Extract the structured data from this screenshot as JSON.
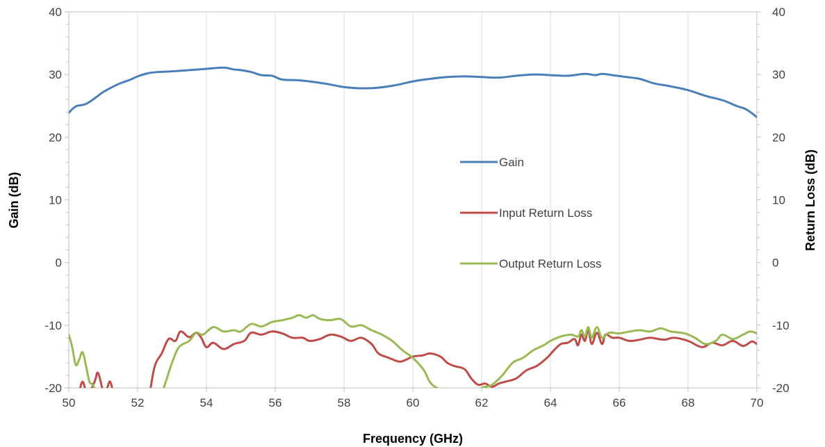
{
  "chart_data": {
    "type": "line",
    "title": "",
    "xlabel": "Frequency (GHz)",
    "ylabel": "Gain (dB)",
    "y2label": "Return Loss (dB)",
    "xlim": [
      50,
      70
    ],
    "ylim": [
      -20,
      40
    ],
    "y2lim": [
      -20,
      40
    ],
    "x_ticks": [
      "50",
      "52",
      "54",
      "56",
      "58",
      "60",
      "62",
      "64",
      "66",
      "68",
      "70"
    ],
    "y_ticks": [
      "-20",
      "-10",
      "0",
      "10",
      "20",
      "30",
      "40"
    ],
    "y2_ticks": [
      "-20",
      "-10",
      "0",
      "10",
      "20",
      "30",
      "40"
    ],
    "grid": "vertical",
    "legend_position": "center-right",
    "series": [
      {
        "name": "Gain",
        "color": "#4a7ebb",
        "axis": "left",
        "points": [
          [
            50,
            23.9
          ],
          [
            50.2,
            24.9
          ],
          [
            50.5,
            25.3
          ],
          [
            50.8,
            26.4
          ],
          [
            51.0,
            27.2
          ],
          [
            51.3,
            28.1
          ],
          [
            51.5,
            28.6
          ],
          [
            51.8,
            29.2
          ],
          [
            52.0,
            29.7
          ],
          [
            52.3,
            30.2
          ],
          [
            52.6,
            30.4
          ],
          [
            53.0,
            30.5
          ],
          [
            53.5,
            30.7
          ],
          [
            54.0,
            30.9
          ],
          [
            54.5,
            31.1
          ],
          [
            54.8,
            30.8
          ],
          [
            55.0,
            30.7
          ],
          [
            55.3,
            30.4
          ],
          [
            55.6,
            29.9
          ],
          [
            55.9,
            29.8
          ],
          [
            56.2,
            29.2
          ],
          [
            56.6,
            29.1
          ],
          [
            57.0,
            28.9
          ],
          [
            57.5,
            28.5
          ],
          [
            58.0,
            28.0
          ],
          [
            58.5,
            27.8
          ],
          [
            59.0,
            27.9
          ],
          [
            59.5,
            28.3
          ],
          [
            60.0,
            28.9
          ],
          [
            60.5,
            29.3
          ],
          [
            61.0,
            29.6
          ],
          [
            61.5,
            29.7
          ],
          [
            62.0,
            29.6
          ],
          [
            62.5,
            29.5
          ],
          [
            63.0,
            29.8
          ],
          [
            63.5,
            30.0
          ],
          [
            64.0,
            29.9
          ],
          [
            64.5,
            29.8
          ],
          [
            65.0,
            30.1
          ],
          [
            65.3,
            29.9
          ],
          [
            65.5,
            30.1
          ],
          [
            65.8,
            29.9
          ],
          [
            66.2,
            29.6
          ],
          [
            66.6,
            29.3
          ],
          [
            67.0,
            28.6
          ],
          [
            67.5,
            28.1
          ],
          [
            68.0,
            27.5
          ],
          [
            68.5,
            26.6
          ],
          [
            69.0,
            25.9
          ],
          [
            69.4,
            25.0
          ],
          [
            69.7,
            24.4
          ],
          [
            70.0,
            23.2
          ]
        ]
      },
      {
        "name": "Input Return Loss",
        "color": "#be4b48",
        "axis": "right",
        "points": [
          [
            50.3,
            -21.0
          ],
          [
            50.4,
            -19.0
          ],
          [
            50.55,
            -21.0
          ],
          [
            50.75,
            -19.0
          ],
          [
            50.85,
            -17.6
          ],
          [
            51.0,
            -20.5
          ],
          [
            51.1,
            -20.2
          ],
          [
            51.2,
            -19.0
          ],
          [
            51.3,
            -21.0
          ],
          [
            52.35,
            -21.0
          ],
          [
            52.5,
            -16.5
          ],
          [
            52.7,
            -14.5
          ],
          [
            52.9,
            -12.2
          ],
          [
            53.1,
            -12.5
          ],
          [
            53.25,
            -11.0
          ],
          [
            53.5,
            -11.9
          ],
          [
            53.7,
            -11.2
          ],
          [
            53.85,
            -12.0
          ],
          [
            54.0,
            -13.5
          ],
          [
            54.2,
            -12.8
          ],
          [
            54.5,
            -13.8
          ],
          [
            54.8,
            -13.0
          ],
          [
            55.1,
            -12.5
          ],
          [
            55.3,
            -11.2
          ],
          [
            55.6,
            -11.5
          ],
          [
            55.9,
            -11.0
          ],
          [
            56.2,
            -11.3
          ],
          [
            56.5,
            -12.0
          ],
          [
            56.8,
            -12.0
          ],
          [
            57.0,
            -12.5
          ],
          [
            57.3,
            -12.2
          ],
          [
            57.6,
            -11.5
          ],
          [
            57.9,
            -11.8
          ],
          [
            58.2,
            -12.5
          ],
          [
            58.5,
            -12.0
          ],
          [
            58.8,
            -13.0
          ],
          [
            59.0,
            -14.5
          ],
          [
            59.3,
            -15.2
          ],
          [
            59.6,
            -15.8
          ],
          [
            59.8,
            -15.5
          ],
          [
            60.0,
            -15.0
          ],
          [
            60.3,
            -14.8
          ],
          [
            60.5,
            -14.5
          ],
          [
            60.8,
            -15.0
          ],
          [
            61.0,
            -16.0
          ],
          [
            61.2,
            -16.5
          ],
          [
            61.5,
            -17.0
          ],
          [
            61.7,
            -18.5
          ],
          [
            61.9,
            -19.5
          ],
          [
            62.1,
            -19.3
          ],
          [
            62.3,
            -19.8
          ],
          [
            62.5,
            -19.3
          ],
          [
            62.7,
            -19.0
          ],
          [
            63.0,
            -18.5
          ],
          [
            63.3,
            -17.2
          ],
          [
            63.6,
            -16.5
          ],
          [
            63.9,
            -15.2
          ],
          [
            64.1,
            -14.0
          ],
          [
            64.3,
            -13.0
          ],
          [
            64.5,
            -12.8
          ],
          [
            64.7,
            -12.2
          ],
          [
            64.8,
            -13.2
          ],
          [
            64.9,
            -11.5
          ],
          [
            65.0,
            -12.5
          ],
          [
            65.1,
            -10.8
          ],
          [
            65.2,
            -13.0
          ],
          [
            65.35,
            -11.2
          ],
          [
            65.5,
            -13.0
          ],
          [
            65.6,
            -11.5
          ],
          [
            65.8,
            -12.0
          ],
          [
            66.0,
            -12.0
          ],
          [
            66.3,
            -12.5
          ],
          [
            66.6,
            -12.3
          ],
          [
            66.9,
            -12.0
          ],
          [
            67.3,
            -12.3
          ],
          [
            67.6,
            -12.0
          ],
          [
            68.0,
            -12.5
          ],
          [
            68.4,
            -13.5
          ],
          [
            68.7,
            -12.8
          ],
          [
            69.0,
            -13.2
          ],
          [
            69.3,
            -12.5
          ],
          [
            69.6,
            -13.3
          ],
          [
            69.85,
            -12.6
          ],
          [
            70.0,
            -13.0
          ]
        ]
      },
      {
        "name": "Output Return Loss",
        "color": "#98b954",
        "axis": "right",
        "points": [
          [
            50.0,
            -11.5
          ],
          [
            50.1,
            -13.5
          ],
          [
            50.2,
            -16.3
          ],
          [
            50.3,
            -15.5
          ],
          [
            50.4,
            -14.3
          ],
          [
            50.5,
            -16.5
          ],
          [
            50.6,
            -19.0
          ],
          [
            50.7,
            -19.5
          ],
          [
            50.8,
            -21.0
          ],
          [
            52.7,
            -21.0
          ],
          [
            52.85,
            -18.5
          ],
          [
            53.0,
            -16.0
          ],
          [
            53.2,
            -13.5
          ],
          [
            53.5,
            -12.5
          ],
          [
            53.7,
            -11.2
          ],
          [
            53.9,
            -11.5
          ],
          [
            54.2,
            -10.3
          ],
          [
            54.5,
            -11.0
          ],
          [
            54.8,
            -10.8
          ],
          [
            55.0,
            -11.0
          ],
          [
            55.3,
            -9.8
          ],
          [
            55.6,
            -10.2
          ],
          [
            55.9,
            -9.5
          ],
          [
            56.2,
            -9.2
          ],
          [
            56.5,
            -8.8
          ],
          [
            56.7,
            -8.4
          ],
          [
            56.9,
            -8.8
          ],
          [
            57.1,
            -8.4
          ],
          [
            57.3,
            -9.0
          ],
          [
            57.6,
            -9.2
          ],
          [
            57.9,
            -9.0
          ],
          [
            58.2,
            -10.2
          ],
          [
            58.5,
            -10.0
          ],
          [
            58.8,
            -10.8
          ],
          [
            59.1,
            -11.5
          ],
          [
            59.4,
            -12.5
          ],
          [
            59.7,
            -14.0
          ],
          [
            60.0,
            -15.2
          ],
          [
            60.3,
            -17.0
          ],
          [
            60.7,
            -20.0
          ],
          [
            61.85,
            -21.0
          ],
          [
            62.0,
            -20.0
          ],
          [
            62.3,
            -19.5
          ],
          [
            62.6,
            -18.0
          ],
          [
            62.9,
            -16.0
          ],
          [
            63.2,
            -15.2
          ],
          [
            63.5,
            -14.0
          ],
          [
            63.8,
            -13.2
          ],
          [
            64.0,
            -12.5
          ],
          [
            64.3,
            -11.8
          ],
          [
            64.6,
            -11.5
          ],
          [
            64.8,
            -11.8
          ],
          [
            64.9,
            -10.8
          ],
          [
            65.0,
            -11.8
          ],
          [
            65.1,
            -10.3
          ],
          [
            65.2,
            -12.0
          ],
          [
            65.35,
            -10.3
          ],
          [
            65.5,
            -12.0
          ],
          [
            65.7,
            -11.2
          ],
          [
            66.0,
            -11.3
          ],
          [
            66.3,
            -11.0
          ],
          [
            66.6,
            -10.8
          ],
          [
            66.9,
            -11.0
          ],
          [
            67.2,
            -10.5
          ],
          [
            67.5,
            -11.0
          ],
          [
            67.9,
            -11.3
          ],
          [
            68.2,
            -12.0
          ],
          [
            68.5,
            -13.0
          ],
          [
            68.8,
            -12.5
          ],
          [
            69.0,
            -11.5
          ],
          [
            69.3,
            -12.2
          ],
          [
            69.6,
            -11.5
          ],
          [
            69.8,
            -11.0
          ],
          [
            70.0,
            -11.3
          ]
        ]
      }
    ]
  }
}
